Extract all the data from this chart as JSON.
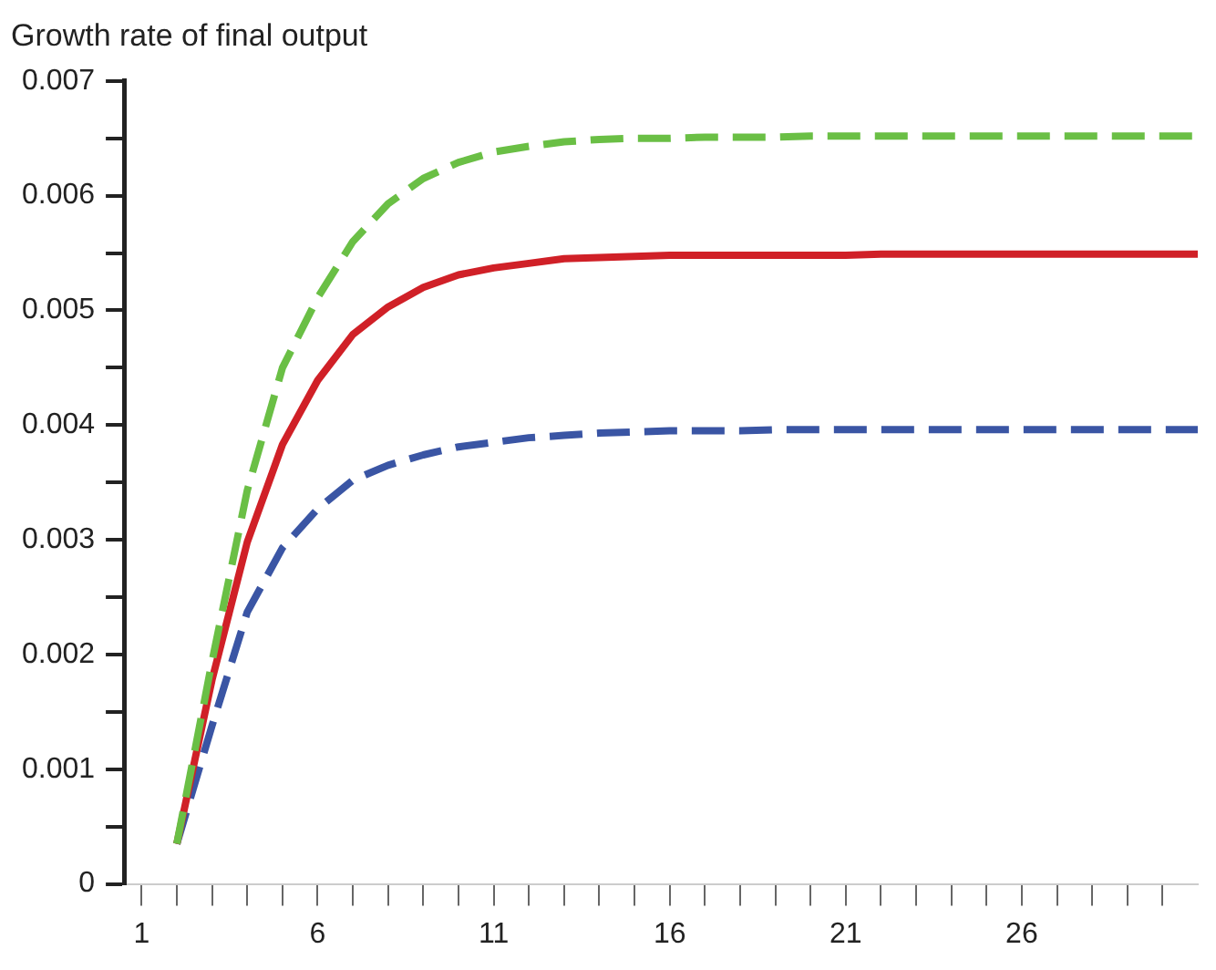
{
  "chart_data": {
    "type": "line",
    "title": "Growth rate of final output",
    "x": [
      2,
      3,
      4,
      5,
      6,
      7,
      8,
      9,
      10,
      11,
      12,
      13,
      14,
      15,
      16,
      17,
      18,
      19,
      20,
      21,
      22,
      23,
      24,
      25,
      26,
      27,
      28,
      29,
      30,
      31
    ],
    "series": [
      {
        "color": "#6abf45",
        "line_style": "dashed",
        "values": [
          0.00035,
          0.00194,
          0.00343,
          0.0045,
          0.00511,
          0.0056,
          0.00593,
          0.00615,
          0.00629,
          0.00638,
          0.00643,
          0.00647,
          0.00649,
          0.0065,
          0.0065,
          0.00651,
          0.00651,
          0.00651,
          0.00652,
          0.00652,
          0.00652,
          0.00652,
          0.00652,
          0.00652,
          0.00652,
          0.00652,
          0.00652,
          0.00652,
          0.00652,
          0.00652
        ]
      },
      {
        "color": "#d02027",
        "line_style": "solid",
        "values": [
          0.00035,
          0.00178,
          0.00298,
          0.00383,
          0.00439,
          0.00479,
          0.00503,
          0.0052,
          0.00531,
          0.00537,
          0.00541,
          0.00545,
          0.00546,
          0.00547,
          0.00548,
          0.00548,
          0.00548,
          0.00548,
          0.00548,
          0.00548,
          0.00549,
          0.00549,
          0.00549,
          0.00549,
          0.00549,
          0.00549,
          0.00549,
          0.00549,
          0.00549,
          0.00549
        ]
      },
      {
        "color": "#3a55a4",
        "line_style": "dashed",
        "values": [
          0.00035,
          0.00138,
          0.00237,
          0.00293,
          0.00327,
          0.00352,
          0.00365,
          0.00374,
          0.00381,
          0.00385,
          0.00389,
          0.00391,
          0.00393,
          0.00394,
          0.00395,
          0.00395,
          0.00395,
          0.00396,
          0.00396,
          0.00396,
          0.00396,
          0.00396,
          0.00396,
          0.00396,
          0.00396,
          0.00396,
          0.00396,
          0.00396,
          0.00396,
          0.00396
        ]
      }
    ],
    "xlim": [
      0.5,
      31
    ],
    "xticks": [
      1,
      {
        "value": 2,
        "label": null
      },
      {
        "value": 3,
        "label": null
      },
      {
        "value": 4,
        "label": null
      },
      {
        "value": 5,
        "label": null
      },
      6,
      {
        "value": 7,
        "label": null
      },
      {
        "value": 8,
        "label": null
      },
      {
        "value": 9,
        "label": null
      },
      {
        "value": 10,
        "label": null
      },
      11,
      {
        "value": 12,
        "label": null
      },
      {
        "value": 13,
        "label": null
      },
      {
        "value": 14,
        "label": null
      },
      {
        "value": 15,
        "label": null
      },
      16,
      {
        "value": 17,
        "label": null
      },
      {
        "value": 18,
        "label": null
      },
      {
        "value": 19,
        "label": null
      },
      {
        "value": 20,
        "label": null
      },
      21,
      {
        "value": 22,
        "label": null
      },
      {
        "value": 23,
        "label": null
      },
      {
        "value": 24,
        "label": null
      },
      {
        "value": 25,
        "label": null
      },
      26,
      {
        "value": 27,
        "label": null
      },
      {
        "value": 28,
        "label": null
      },
      {
        "value": 29,
        "label": null
      },
      {
        "value": 30,
        "label": null
      }
    ],
    "ylim": [
      0,
      0.007
    ],
    "yticks": [
      0,
      {
        "value": 0.0005,
        "label": null
      },
      0.001,
      {
        "value": 0.0015,
        "label": null
      },
      0.002,
      {
        "value": 0.0025,
        "label": null
      },
      0.003,
      {
        "value": 0.0035,
        "label": null
      },
      0.004,
      {
        "value": 0.0045,
        "label": null
      },
      0.005,
      {
        "value": 0.0055,
        "label": null
      },
      0.006,
      {
        "value": 0.0065,
        "label": null
      },
      0.007
    ],
    "grid": false,
    "legend": false,
    "marker": "none"
  }
}
